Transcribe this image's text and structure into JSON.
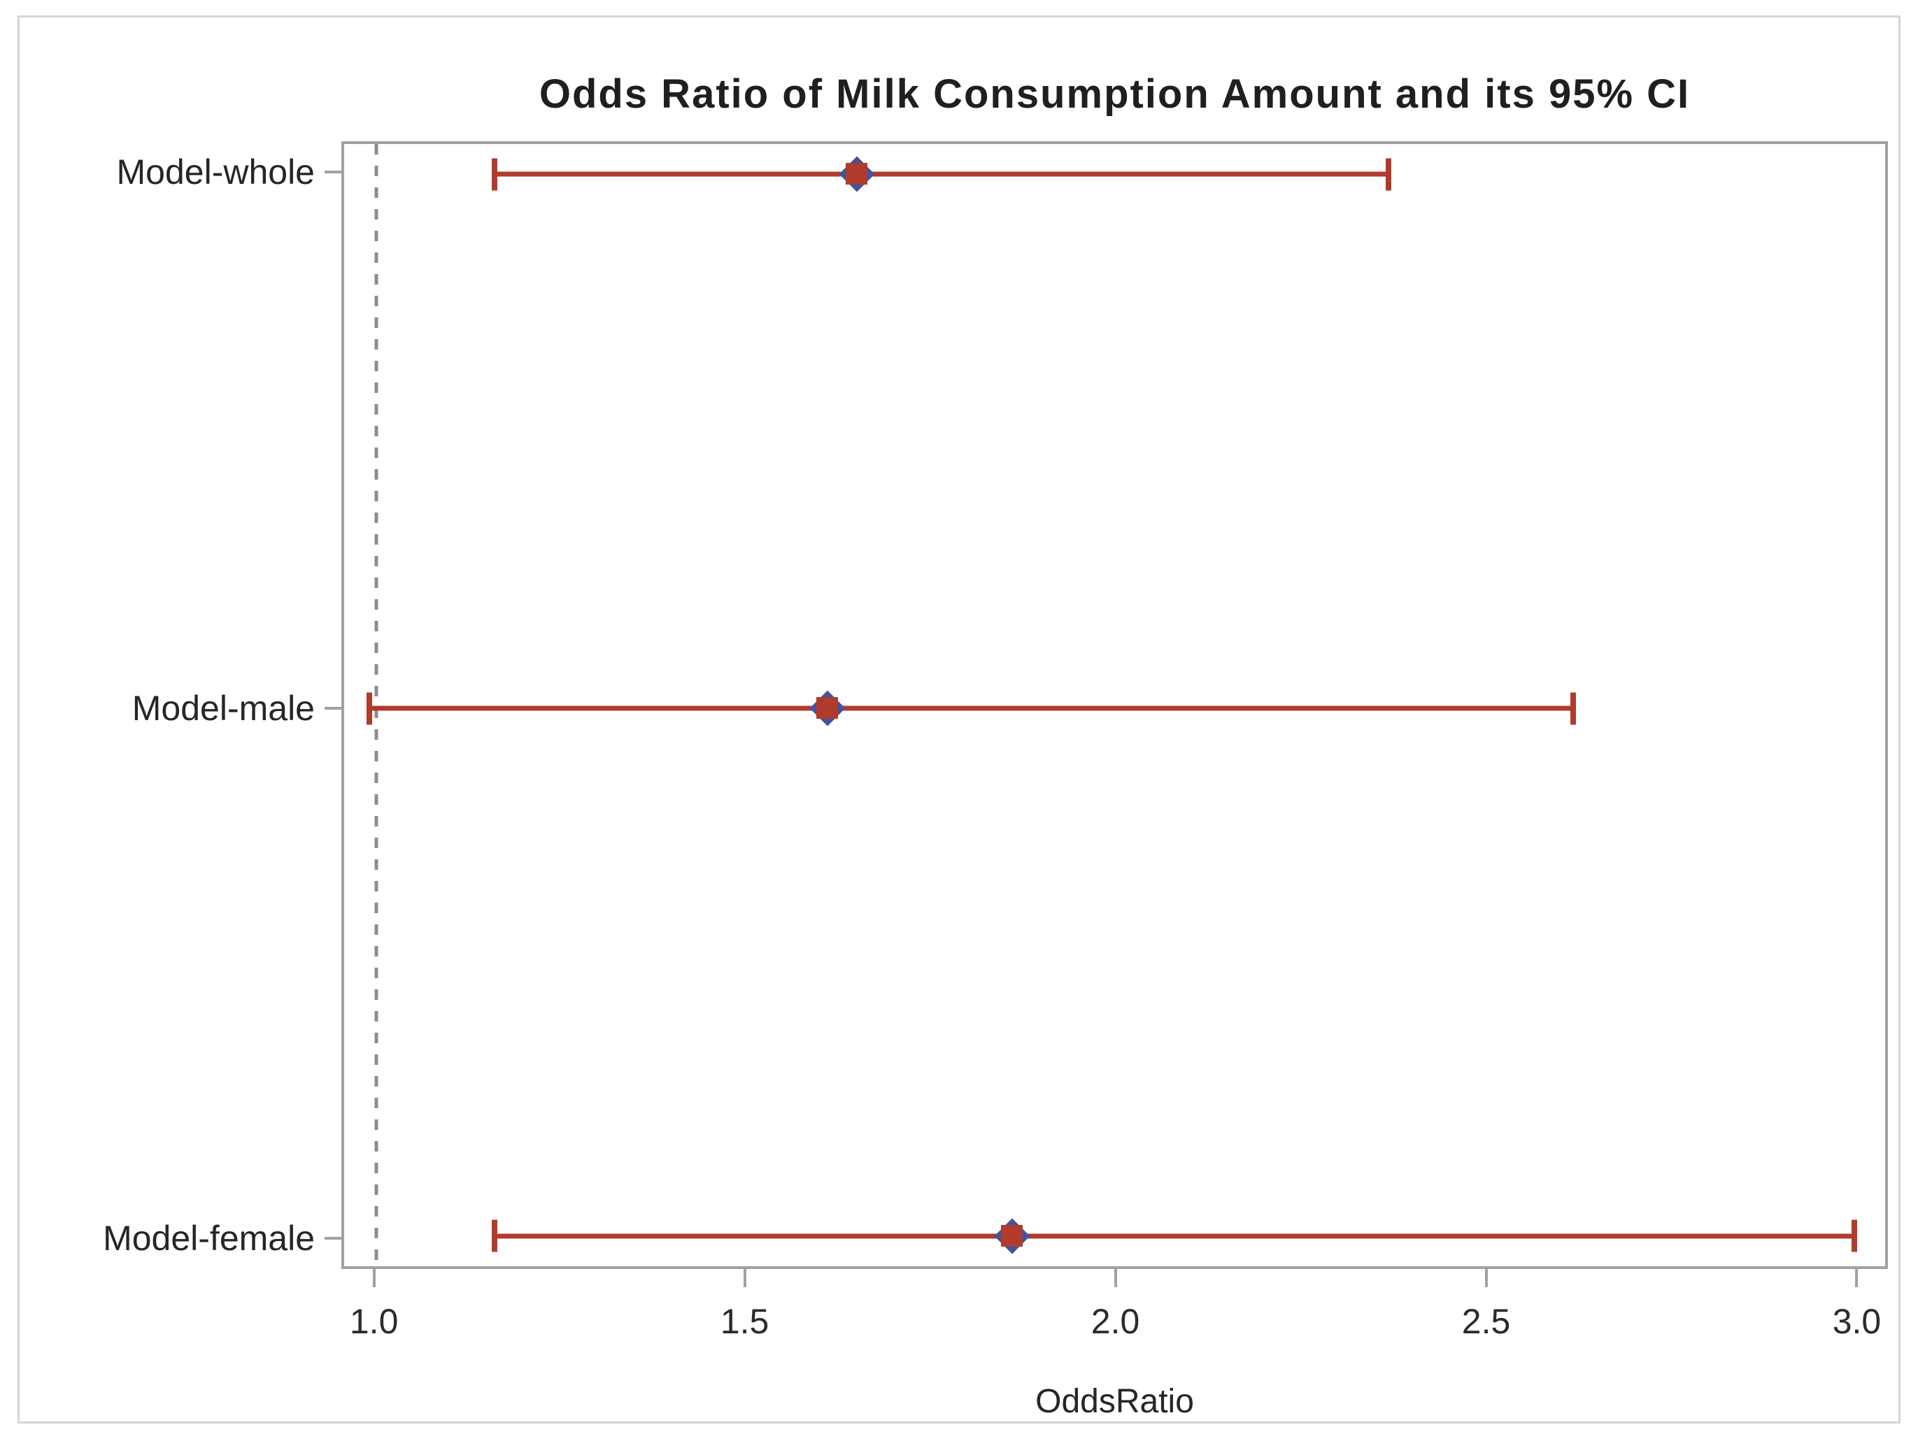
{
  "chart_data": {
    "type": "scatter",
    "subtype": "forest-plot-with-error-bars",
    "title": "Odds Ratio of Milk Consumption Amount and its 95% CI",
    "xlabel": "OddsRatio",
    "x_ticks": [
      1.0,
      1.5,
      2.0,
      2.5,
      3.0
    ],
    "x_tick_labels": [
      "1.0",
      "1.5",
      "2.0",
      "2.5",
      "3.0"
    ],
    "xlim": [
      0.956,
      3.042
    ],
    "refline_x": 1.0,
    "grid": false,
    "legend": false,
    "categories": [
      "Model-whole",
      "Model-male",
      "Model-female"
    ],
    "series": [
      {
        "name": "Model-whole",
        "odds_ratio": 1.65,
        "ci_lower": 1.16,
        "ci_upper": 2.37
      },
      {
        "name": "Model-male",
        "odds_ratio": 1.61,
        "ci_lower": 0.99,
        "ci_upper": 2.62
      },
      {
        "name": "Model-female",
        "odds_ratio": 1.86,
        "ci_lower": 1.16,
        "ci_upper": 3.0
      }
    ],
    "row_fracs": [
      0.027,
      0.503,
      0.973
    ],
    "colors": {
      "ci_line": "#b03b2c",
      "marker_square": "#b03b2c",
      "marker_diamond": "#4253a0",
      "reference_line": "#8b8e91",
      "axis_line": "#9da2a7",
      "tick_text": "#2b2b2b",
      "label_text": "#262626",
      "title_text": "#1f1f1f",
      "frame": "#d5d5d5"
    }
  }
}
